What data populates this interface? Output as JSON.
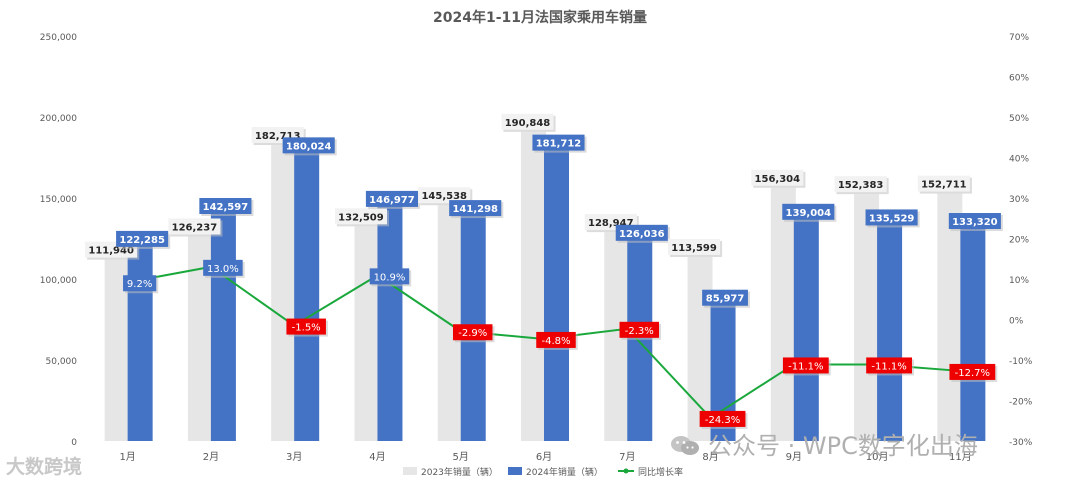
{
  "chart_data": {
    "type": "bar",
    "title": "2024年1-11月法国家乘用车销量",
    "categories": [
      "1月",
      "2月",
      "3月",
      "4月",
      "5月",
      "6月",
      "7月",
      "8月",
      "9月",
      "10月",
      "11月"
    ],
    "series": [
      {
        "name": "2023年销量（辆）",
        "type": "bar",
        "color": "#e6e6e6",
        "values": [
          111940,
          126237,
          182713,
          132509,
          145538,
          190848,
          128947,
          113599,
          156304,
          152383,
          152711
        ],
        "labels": [
          "111,940",
          "126,237",
          "182,713",
          "132,509",
          "145,538",
          "190,848",
          "128,947",
          "113,599",
          "156,304",
          "152,383",
          "152,711"
        ]
      },
      {
        "name": "2024年销量（辆）",
        "type": "bar",
        "color": "#4472c4",
        "values": [
          122285,
          142597,
          180024,
          146977,
          141298,
          181712,
          126036,
          85977,
          139004,
          135529,
          133320
        ],
        "labels": [
          "122,285",
          "142,597",
          "180,024",
          "146,977",
          "141,298",
          "181,712",
          "126,036",
          "85,977",
          "139,004",
          "135,529",
          "133,320"
        ]
      },
      {
        "name": "同比增长率",
        "type": "line",
        "axis": "right",
        "color": "#1aa83c",
        "values": [
          9.2,
          13.0,
          -1.5,
          10.9,
          -2.9,
          -4.8,
          -2.3,
          -24.3,
          -11.1,
          -11.1,
          -12.7
        ],
        "labels": [
          "9.2%",
          "13.0%",
          "-1.5%",
          "10.9%",
          "-2.9%",
          "-4.8%",
          "-2.3%",
          "-24.3%",
          "-11.1%",
          "-11.1%",
          "-12.7%"
        ]
      }
    ],
    "y_left": {
      "min": 0,
      "max": 250000,
      "step": 50000,
      "ticks": [
        "0",
        "50,000",
        "100,000",
        "150,000",
        "200,000",
        "250,000"
      ]
    },
    "y_right": {
      "min": -30,
      "max": 70,
      "step": 10,
      "ticks": [
        "-30%",
        "-20%",
        "-10%",
        "0%",
        "10%",
        "20%",
        "30%",
        "40%",
        "50%",
        "60%",
        "70%"
      ]
    },
    "grid": false,
    "legend_position": "bottom",
    "colors": {
      "positive_label_bg": "#4472c4",
      "negative_label_bg": "#ee0000"
    }
  },
  "watermarks": {
    "left": "大数跨境",
    "right": "公众号 · WPC数字化出海"
  }
}
